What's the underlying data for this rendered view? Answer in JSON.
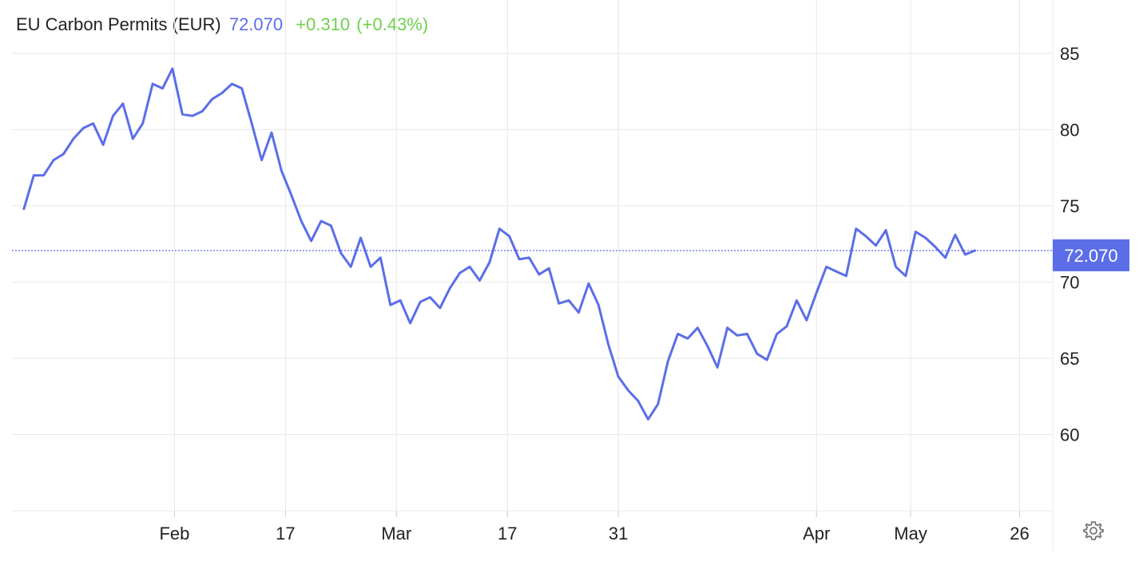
{
  "header": {
    "title": "EU Carbon Permits (EUR)",
    "price": "72.070",
    "change": "+0.310",
    "change_pct": "(+0.43%)"
  },
  "colors": {
    "line": "#5b6ee8",
    "grid": "#e8e8e8",
    "price_label_bg": "#5b6ee8",
    "positive": "#6fd14b",
    "text": "#222222"
  },
  "icons": {
    "settings": "gear-icon"
  },
  "chart_data": {
    "type": "line",
    "title": "EU Carbon Permits (EUR)",
    "xlabel": "",
    "ylabel": "",
    "ylim": [
      55,
      88.5
    ],
    "y_ticks": [
      60,
      65,
      70,
      75,
      80,
      85
    ],
    "y_tick_labels": [
      "60",
      "65",
      "70",
      "75",
      "80",
      "85"
    ],
    "x_ticks": [
      15.2,
      26.4,
      37.6,
      48.8,
      60,
      80,
      89.5,
      100.5
    ],
    "x_tick_labels": [
      "Feb",
      "17",
      "Mar",
      "17",
      "31",
      "Apr",
      "May",
      "26"
    ],
    "xlim": [
      -1.2,
      103.2
    ],
    "grid": true,
    "last_price_label": "72.070",
    "last_price_value": 72.07,
    "series": [
      {
        "values": [
          74.8,
          77.0,
          77.0,
          78.0,
          78.4,
          79.4,
          80.1,
          80.4,
          79.0,
          80.9,
          81.7,
          79.4,
          80.4,
          83.0,
          82.7,
          84.0,
          81.0,
          80.9,
          81.2,
          82.0,
          82.4,
          83.0,
          82.7,
          80.4,
          78.0,
          79.8,
          77.3,
          75.7,
          74.0,
          72.7,
          74.0,
          73.7,
          71.9,
          71.0,
          72.9,
          71.0,
          71.6,
          68.5,
          68.8,
          67.3,
          68.7,
          69.0,
          68.3,
          69.6,
          70.6,
          71.0,
          70.1,
          71.3,
          73.5,
          73.0,
          71.5,
          71.6,
          70.5,
          70.9,
          68.6,
          68.8,
          68.0,
          69.9,
          68.5,
          65.9,
          63.8,
          62.9,
          62.2,
          61.0,
          62.0,
          64.8,
          66.6,
          66.3,
          67.0,
          65.8,
          64.4,
          67.0,
          66.5,
          66.6,
          65.3,
          64.9,
          66.6,
          67.1,
          68.8,
          67.5,
          69.3,
          71.0,
          70.7,
          70.4,
          73.5,
          73.0,
          72.4,
          73.4,
          71.0,
          70.4,
          73.3,
          72.9,
          72.3,
          71.6,
          73.1,
          71.8,
          72.07
        ]
      }
    ]
  }
}
